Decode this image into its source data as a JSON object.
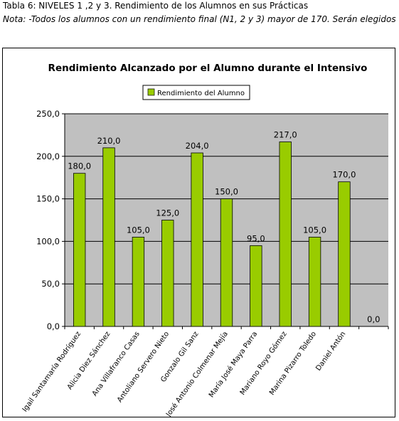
{
  "caption": {
    "line1": "Tabla 6: NIVELES 1 ,2 y 3. Rendimiento de los Alumnos en sus Prácticas",
    "line2": "Nota: -Todos los alumnos con un rendimiento final (N1, 2 y 3) mayor de 170. Serán elegidos"
  },
  "chart_data": {
    "type": "bar",
    "title": "Rendimiento Alcanzado por el Alumno durante el Intensivo",
    "legend": {
      "position": "top-center",
      "entries": [
        "Rendimiento del Alumno"
      ]
    },
    "categories": [
      "Igail Santamaría Rodríguez",
      "Alicia Diez Sánchez",
      "Ana Villafranco Casas",
      "Antoliano Servero Nieto",
      "Gonzalo Gil Sanz",
      "José Antonio Colmenar Mejía",
      "María José Maya Parra",
      "Mariano Royo Gómez",
      "Marina Pizarro Toledo",
      "Daniel Antón",
      ""
    ],
    "series": [
      {
        "name": "Rendimiento del Alumno",
        "values": [
          180,
          210,
          105,
          125,
          204,
          150,
          95,
          217,
          105,
          170,
          0
        ]
      }
    ],
    "data_labels": [
      "180,0",
      "210,0",
      "105,0",
      "125,0",
      "204,0",
      "150,0",
      "95,0",
      "217,0",
      "105,0",
      "170,0",
      "0,0"
    ],
    "y_ticks": [
      "0,0",
      "50,0",
      "100,0",
      "150,0",
      "200,0",
      "250,0"
    ],
    "ylim": [
      0,
      250
    ],
    "grid": true,
    "colors": {
      "bar": "#99cc00",
      "plot_bg": "#c0c0c0",
      "grid": "#000000"
    }
  }
}
